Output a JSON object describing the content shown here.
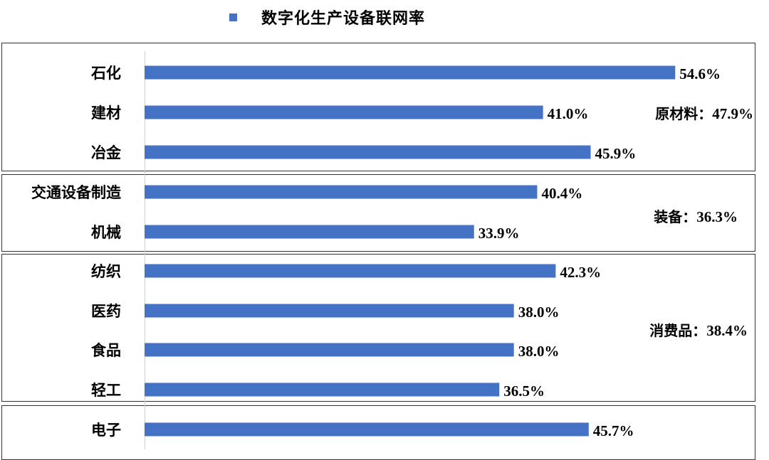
{
  "chart_data": {
    "type": "bar",
    "orientation": "horizontal",
    "legend": "数字化生产设备联网率",
    "legend_position": "top",
    "color": "#4472C4",
    "xlim": [
      0,
      0.6
    ],
    "categories": [
      "石化",
      "建材",
      "冶金",
      "交通设备制造",
      "机械",
      "纺织",
      "医药",
      "食品",
      "轻工",
      "电子"
    ],
    "values": [
      54.6,
      41.0,
      45.9,
      40.4,
      33.9,
      42.3,
      38.0,
      38.0,
      36.5,
      45.7
    ],
    "value_labels": [
      "54.6%",
      "41.0%",
      "45.9%",
      "40.4%",
      "33.9%",
      "42.3%",
      "38.0%",
      "38.0%",
      "36.5%",
      "45.7%"
    ],
    "groups": [
      {
        "name": "原材料",
        "sep": "：",
        "value": "47.9%",
        "members": [
          "石化",
          "建材",
          "冶金"
        ]
      },
      {
        "name": "装备",
        "sep": "：",
        "value": "36.3%",
        "members": [
          "交通设备制造",
          "机械"
        ]
      },
      {
        "name": "消费品",
        "sep": "：",
        "value": "38.4%",
        "members": [
          "纺织",
          "医药",
          "食品",
          "轻工"
        ]
      },
      {
        "name": "",
        "sep": "",
        "value": "",
        "members": [
          "电子"
        ]
      }
    ]
  }
}
